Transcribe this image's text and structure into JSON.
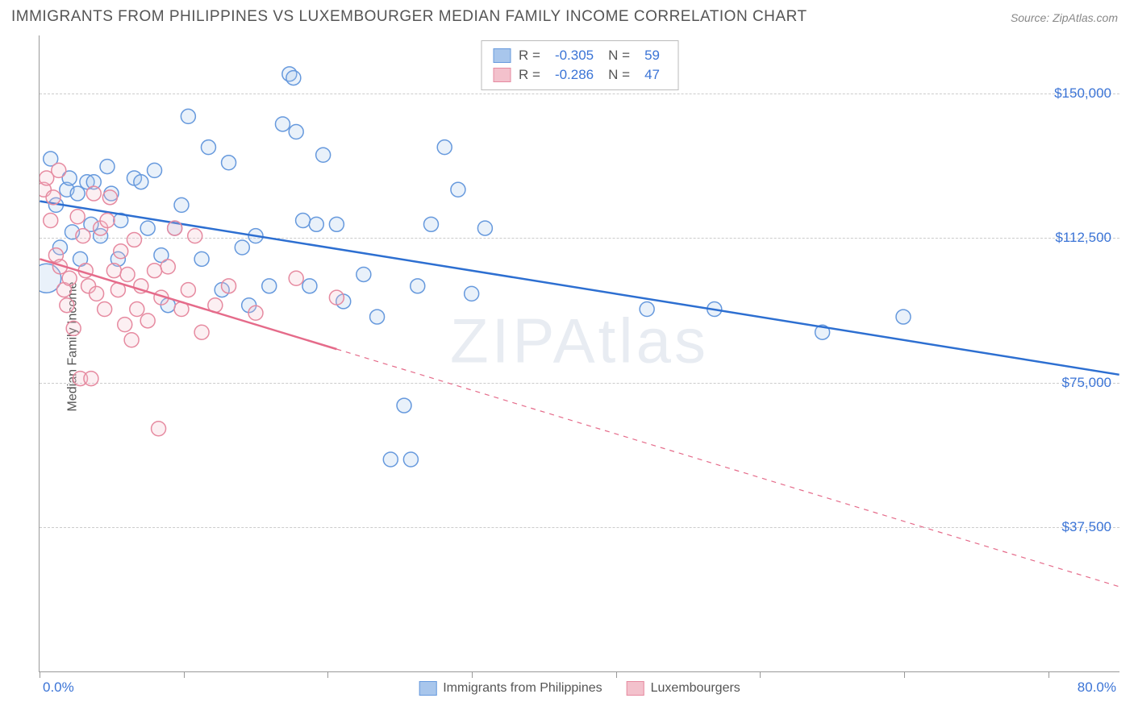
{
  "title": "IMMIGRANTS FROM PHILIPPINES VS LUXEMBOURGER MEDIAN FAMILY INCOME CORRELATION CHART",
  "source": "Source: ZipAtlas.com",
  "ylabel": "Median Family Income",
  "watermark": "ZIPAtlas",
  "chart": {
    "type": "scatter",
    "xlim": [
      0,
      80
    ],
    "ylim": [
      0,
      165000
    ],
    "xtick_labels": [
      "0.0%",
      "80.0%"
    ],
    "xtick_positions": [
      0,
      10.7,
      21.3,
      32,
      42.7,
      53.3,
      64,
      74.7
    ],
    "ytick_labels": [
      "$37,500",
      "$75,000",
      "$112,500",
      "$150,000"
    ],
    "ytick_values": [
      37500,
      75000,
      112500,
      150000
    ],
    "background_color": "#ffffff",
    "grid_color": "#cccccc",
    "circle_radius": 9,
    "circle_stroke_width": 1.5,
    "circle_fill_opacity": 0.25,
    "line_width": 2.5,
    "series": [
      {
        "name": "Immigrants from Philippines",
        "color_fill": "#a8c6ec",
        "color_stroke": "#6699dd",
        "line_color": "#2d6fd1",
        "R": "-0.305",
        "N": "59",
        "trend_line": {
          "x1": 0,
          "y1": 122000,
          "x2": 80,
          "y2": 77000,
          "solid_until_x": 80
        },
        "points": [
          {
            "x": 0.5,
            "y": 102000,
            "r": 18
          },
          {
            "x": 0.8,
            "y": 133000
          },
          {
            "x": 1.2,
            "y": 121000
          },
          {
            "x": 1.5,
            "y": 110000
          },
          {
            "x": 2.0,
            "y": 125000
          },
          {
            "x": 2.2,
            "y": 128000
          },
          {
            "x": 2.4,
            "y": 114000
          },
          {
            "x": 2.8,
            "y": 124000
          },
          {
            "x": 3.0,
            "y": 107000
          },
          {
            "x": 3.5,
            "y": 127000
          },
          {
            "x": 3.8,
            "y": 116000
          },
          {
            "x": 4.0,
            "y": 127000
          },
          {
            "x": 4.5,
            "y": 113000
          },
          {
            "x": 5.0,
            "y": 131000
          },
          {
            "x": 5.3,
            "y": 124000
          },
          {
            "x": 5.8,
            "y": 107000
          },
          {
            "x": 6.0,
            "y": 117000
          },
          {
            "x": 7.0,
            "y": 128000
          },
          {
            "x": 7.5,
            "y": 127000
          },
          {
            "x": 8.0,
            "y": 115000
          },
          {
            "x": 8.5,
            "y": 130000
          },
          {
            "x": 9.0,
            "y": 108000
          },
          {
            "x": 9.5,
            "y": 95000
          },
          {
            "x": 10.0,
            "y": 115000
          },
          {
            "x": 10.5,
            "y": 121000
          },
          {
            "x": 11.0,
            "y": 144000
          },
          {
            "x": 12.0,
            "y": 107000
          },
          {
            "x": 12.5,
            "y": 136000
          },
          {
            "x": 13.5,
            "y": 99000
          },
          {
            "x": 14.0,
            "y": 132000
          },
          {
            "x": 15.0,
            "y": 110000
          },
          {
            "x": 15.5,
            "y": 95000
          },
          {
            "x": 16.0,
            "y": 113000
          },
          {
            "x": 17.0,
            "y": 100000
          },
          {
            "x": 18.0,
            "y": 142000
          },
          {
            "x": 18.5,
            "y": 155000
          },
          {
            "x": 18.8,
            "y": 154000
          },
          {
            "x": 19.0,
            "y": 140000
          },
          {
            "x": 19.5,
            "y": 117000
          },
          {
            "x": 20.0,
            "y": 100000
          },
          {
            "x": 20.5,
            "y": 116000
          },
          {
            "x": 21.0,
            "y": 134000
          },
          {
            "x": 22.0,
            "y": 116000
          },
          {
            "x": 22.5,
            "y": 96000
          },
          {
            "x": 24.0,
            "y": 103000
          },
          {
            "x": 25.0,
            "y": 92000
          },
          {
            "x": 26.0,
            "y": 55000
          },
          {
            "x": 27.0,
            "y": 69000
          },
          {
            "x": 27.5,
            "y": 55000
          },
          {
            "x": 28.0,
            "y": 100000
          },
          {
            "x": 29.0,
            "y": 116000
          },
          {
            "x": 30.0,
            "y": 136000
          },
          {
            "x": 31.0,
            "y": 125000
          },
          {
            "x": 32.0,
            "y": 98000
          },
          {
            "x": 33.0,
            "y": 115000
          },
          {
            "x": 45.0,
            "y": 94000
          },
          {
            "x": 50.0,
            "y": 94000
          },
          {
            "x": 58.0,
            "y": 88000
          },
          {
            "x": 64.0,
            "y": 92000
          }
        ]
      },
      {
        "name": "Luxembourgers",
        "color_fill": "#f3c1cc",
        "color_stroke": "#e68aa0",
        "line_color": "#e56b8a",
        "R": "-0.286",
        "N": "47",
        "trend_line": {
          "x1": 0,
          "y1": 107000,
          "x2": 80,
          "y2": 22000,
          "solid_until_x": 22
        },
        "points": [
          {
            "x": 0.3,
            "y": 125000
          },
          {
            "x": 0.5,
            "y": 128000
          },
          {
            "x": 0.8,
            "y": 117000
          },
          {
            "x": 1.0,
            "y": 123000
          },
          {
            "x": 1.2,
            "y": 108000
          },
          {
            "x": 1.4,
            "y": 130000
          },
          {
            "x": 1.5,
            "y": 105000
          },
          {
            "x": 1.8,
            "y": 99000
          },
          {
            "x": 2.0,
            "y": 95000
          },
          {
            "x": 2.2,
            "y": 102000
          },
          {
            "x": 2.5,
            "y": 89000
          },
          {
            "x": 2.8,
            "y": 118000
          },
          {
            "x": 3.0,
            "y": 76000
          },
          {
            "x": 3.2,
            "y": 113000
          },
          {
            "x": 3.4,
            "y": 104000
          },
          {
            "x": 3.6,
            "y": 100000
          },
          {
            "x": 3.8,
            "y": 76000
          },
          {
            "x": 4.0,
            "y": 124000
          },
          {
            "x": 4.2,
            "y": 98000
          },
          {
            "x": 4.5,
            "y": 115000
          },
          {
            "x": 4.8,
            "y": 94000
          },
          {
            "x": 5.0,
            "y": 117000
          },
          {
            "x": 5.2,
            "y": 123000
          },
          {
            "x": 5.5,
            "y": 104000
          },
          {
            "x": 5.8,
            "y": 99000
          },
          {
            "x": 6.0,
            "y": 109000
          },
          {
            "x": 6.3,
            "y": 90000
          },
          {
            "x": 6.5,
            "y": 103000
          },
          {
            "x": 6.8,
            "y": 86000
          },
          {
            "x": 7.0,
            "y": 112000
          },
          {
            "x": 7.2,
            "y": 94000
          },
          {
            "x": 7.5,
            "y": 100000
          },
          {
            "x": 8.0,
            "y": 91000
          },
          {
            "x": 8.5,
            "y": 104000
          },
          {
            "x": 8.8,
            "y": 63000
          },
          {
            "x": 9.0,
            "y": 97000
          },
          {
            "x": 9.5,
            "y": 105000
          },
          {
            "x": 10.0,
            "y": 115000
          },
          {
            "x": 10.5,
            "y": 94000
          },
          {
            "x": 11.0,
            "y": 99000
          },
          {
            "x": 11.5,
            "y": 113000
          },
          {
            "x": 12.0,
            "y": 88000
          },
          {
            "x": 13.0,
            "y": 95000
          },
          {
            "x": 14.0,
            "y": 100000
          },
          {
            "x": 16.0,
            "y": 93000
          },
          {
            "x": 19.0,
            "y": 102000
          },
          {
            "x": 22.0,
            "y": 97000
          }
        ]
      }
    ]
  },
  "legend_top": {
    "r_label": "R =",
    "n_label": "N ="
  },
  "colors": {
    "axis_text": "#3b74d6",
    "title_text": "#555555"
  }
}
